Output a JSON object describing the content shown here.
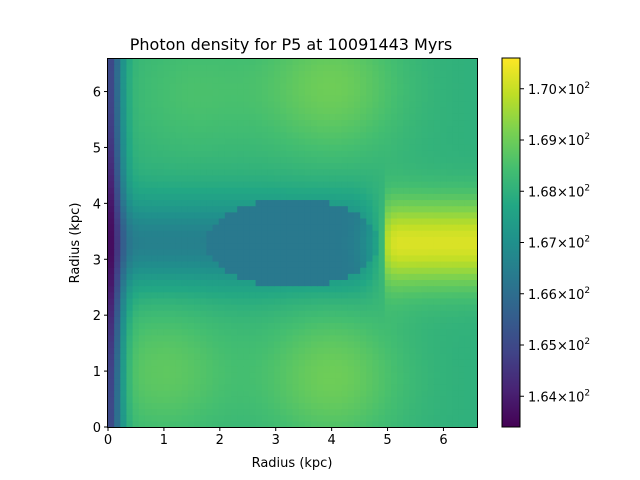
{
  "chart_data": {
    "type": "heatmap",
    "title": "Photon density for P5  at 10091443 Myrs",
    "xlabel": "Radius (kpc)",
    "ylabel": "Radius (kpc)",
    "xlim": [
      0,
      6.6
    ],
    "ylim": [
      0,
      6.6
    ],
    "xticks": [
      "0",
      "1",
      "2",
      "3",
      "4",
      "5",
      "6"
    ],
    "yticks": [
      "0",
      "1",
      "2",
      "3",
      "4",
      "5",
      "6"
    ],
    "colormap": "viridis",
    "color_range": [
      163.4,
      170.6
    ],
    "colorbar_ticks": [
      {
        "value": 164,
        "mantissa": "1.64",
        "base": "10",
        "exp": "2"
      },
      {
        "value": 165,
        "mantissa": "1.65",
        "base": "10",
        "exp": "2"
      },
      {
        "value": 166,
        "mantissa": "1.66",
        "base": "10",
        "exp": "2"
      },
      {
        "value": 167,
        "mantissa": "1.67",
        "base": "10",
        "exp": "2"
      },
      {
        "value": 168,
        "mantissa": "1.68",
        "base": "10",
        "exp": "2"
      },
      {
        "value": 169,
        "mantissa": "1.69",
        "base": "10",
        "exp": "2"
      },
      {
        "value": 170,
        "mantissa": "1.70",
        "base": "10",
        "exp": "2"
      }
    ],
    "field_description": {
      "background": 168.0,
      "left_edge_min": 163.5,
      "central_band": {
        "y": 3.3,
        "value": 166.4
      },
      "ellipse": {
        "cx": 3.3,
        "cy": 3.3,
        "rx": 1.55,
        "ry": 0.8,
        "value": 166.3
      },
      "hot_spot": {
        "x": 5.9,
        "y": 3.3,
        "value": 170.5
      },
      "lobes": [
        {
          "x": 1.0,
          "y": 1.0,
          "value": 168.8
        },
        {
          "x": 4.0,
          "y": 0.9,
          "value": 169.0
        },
        {
          "x": 4.0,
          "y": 6.1,
          "value": 169.0
        },
        {
          "x": 1.5,
          "y": 6.0,
          "value": 168.5
        }
      ]
    }
  }
}
